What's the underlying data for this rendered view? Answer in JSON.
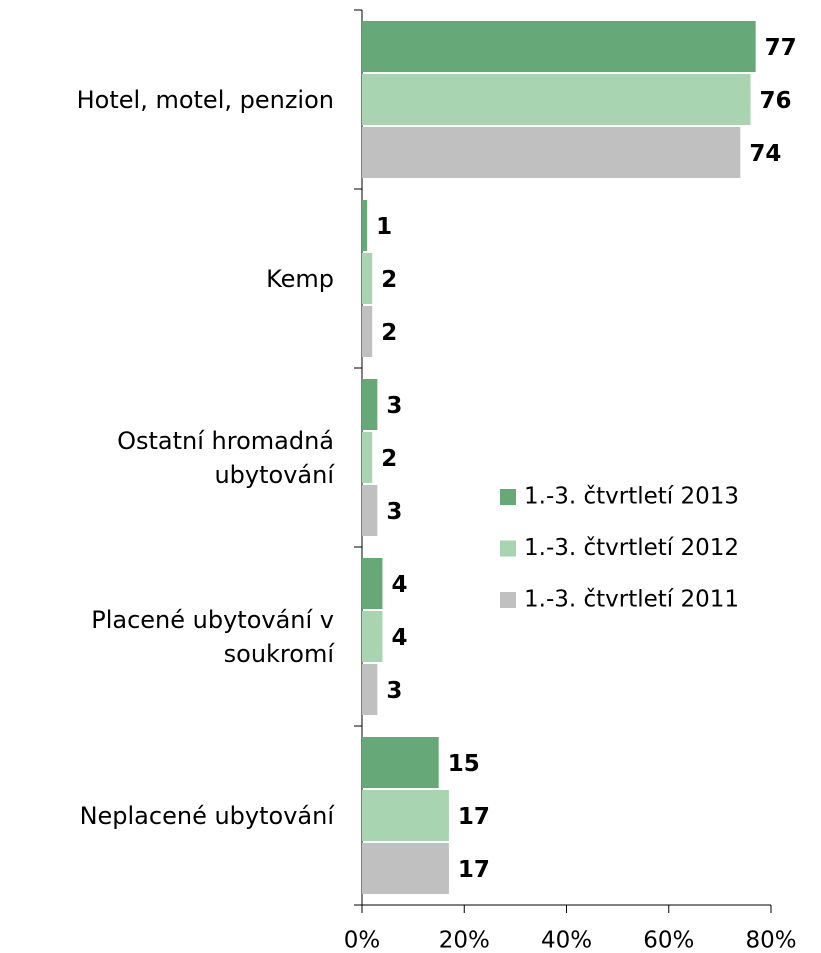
{
  "chart_data": {
    "type": "bar",
    "orientation": "horizontal",
    "categories": [
      "Hotel, motel, penzion",
      "Kemp",
      "Ostatní hromadná ubytování",
      "Placené ubytování v soukromí",
      "Neplacené ubytování"
    ],
    "series": [
      {
        "name": "1.-3. čtvrtletí 2013",
        "color": "#66a877",
        "values": [
          77,
          1,
          3,
          4,
          15
        ]
      },
      {
        "name": "1.-3. čtvrtletí 2012",
        "color": "#a9d4b1",
        "values": [
          76,
          2,
          2,
          4,
          17
        ]
      },
      {
        "name": "1.-3. čtvrtletí 2011",
        "color": "#c0c0c0",
        "values": [
          74,
          2,
          3,
          3,
          17
        ]
      }
    ],
    "xlim": [
      0,
      80
    ],
    "xticks": [
      {
        "value": 0,
        "label": "0%"
      },
      {
        "value": 20,
        "label": "20%"
      },
      {
        "value": 40,
        "label": "40%"
      },
      {
        "value": 60,
        "label": "60%"
      },
      {
        "value": 80,
        "label": "80%"
      }
    ],
    "legend": "right"
  }
}
